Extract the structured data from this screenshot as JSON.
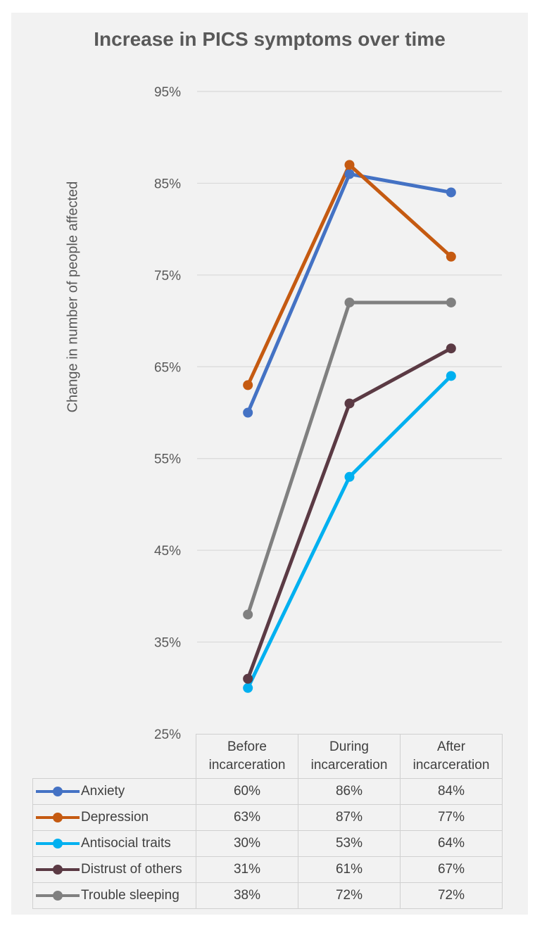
{
  "chart_data": {
    "type": "line",
    "title": "Increase in PICS symptoms over time",
    "ylabel": "Change in number of people affected",
    "xlabel": "",
    "categories": [
      "Before incarceration",
      "During incarceration",
      "After incarceration"
    ],
    "category_lines": [
      [
        "Before",
        "incarceration"
      ],
      [
        "During",
        "incarceration"
      ],
      [
        "After",
        "incarceration"
      ]
    ],
    "ylim": [
      25,
      95
    ],
    "yticks": [
      25,
      35,
      45,
      55,
      65,
      75,
      85,
      95
    ],
    "ytick_labels": [
      "25%",
      "35%",
      "45%",
      "55%",
      "65%",
      "75%",
      "85%",
      "95%"
    ],
    "grid": true,
    "legend": "data table below chart",
    "series": [
      {
        "name": "Anxiety",
        "color": "#4472c4",
        "values": [
          60,
          86,
          84
        ],
        "labels": [
          "60%",
          "86%",
          "84%"
        ]
      },
      {
        "name": "Depression",
        "color": "#c55a11",
        "values": [
          63,
          87,
          77
        ],
        "labels": [
          "63%",
          "87%",
          "77%"
        ]
      },
      {
        "name": "Antisocial traits",
        "color": "#00b0f0",
        "values": [
          30,
          53,
          64
        ],
        "labels": [
          "30%",
          "53%",
          "64%"
        ]
      },
      {
        "name": "Distrust of others",
        "color": "#5b3a44",
        "values": [
          31,
          61,
          67
        ],
        "labels": [
          "31%",
          "61%",
          "67%"
        ]
      },
      {
        "name": "Trouble sleeping",
        "color": "#808080",
        "values": [
          38,
          72,
          72
        ],
        "labels": [
          "38%",
          "72%",
          "72%"
        ]
      }
    ]
  }
}
